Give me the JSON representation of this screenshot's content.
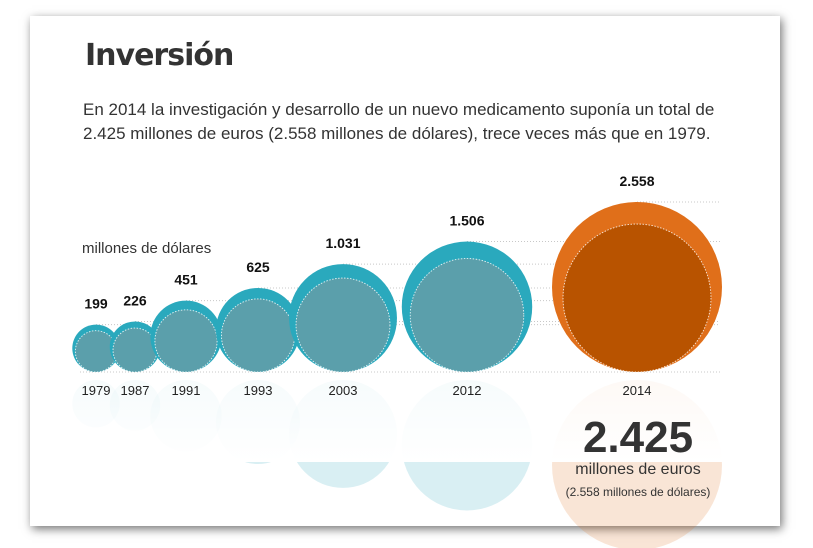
{
  "header": {
    "title": "Inversión",
    "subtitle": "En 2014 la investigación y desarrollo de un nuevo medicamento suponía un total de 2.425 millones de euros (2.558 millones de dólares), trece veces más que en 1979."
  },
  "chart_data": {
    "type": "bubble",
    "title": "Inversión",
    "unit_label": "millones de dólares",
    "categories": [
      "1979",
      "1987",
      "1991",
      "1993",
      "2003",
      "2012",
      "2014"
    ],
    "series": [
      {
        "values": [
          199,
          226,
          451,
          625,
          1031,
          1506,
          2558
        ],
        "labels": [
          "199",
          "226",
          "451",
          "625",
          "1.031",
          "1.506",
          "2.558"
        ]
      },
      {
        "values": [
          151,
          171,
          342,
          473,
          781,
          1141,
          1938
        ]
      }
    ],
    "colors": {
      "outer": "#2aa9bd",
      "inner": "#5b9fab",
      "outer_highlight": "#e06f1a",
      "inner_highlight": "#b85300"
    },
    "highlight": {
      "value": "2.425",
      "unit": "millones de euros",
      "note": "(2.558 millones de dólares)"
    }
  }
}
